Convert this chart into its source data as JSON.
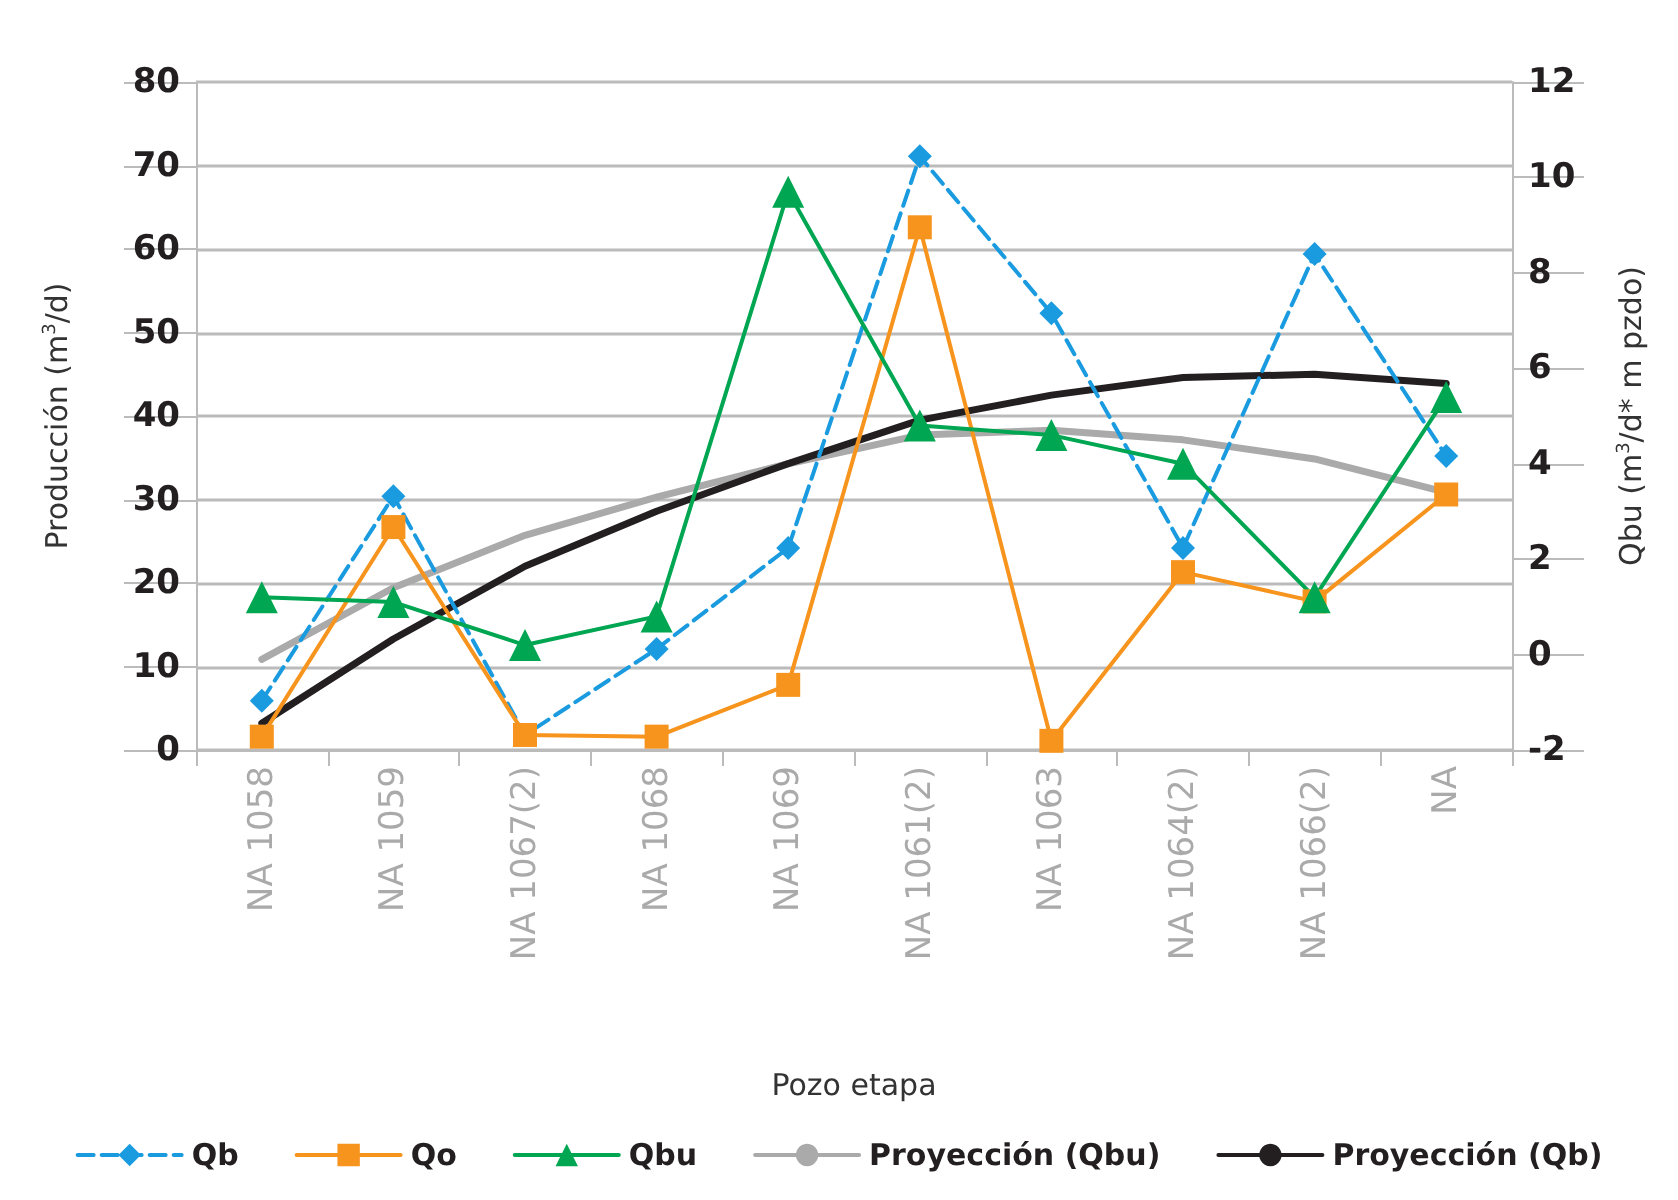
{
  "chart_data": {
    "type": "line",
    "xlabel": "Pozo etapa",
    "ylabel": "Producción (m$^{3}$/d)",
    "y2label": "Qbu (m$^{3}$/d* m pzdo)",
    "categories": [
      "NA 1058",
      "NA 1059",
      "NA 1067(2)",
      "NA 1068",
      "NA 1069",
      "NA 1061(2)",
      "NA 1063",
      "NA 1064(2)",
      "NA 1066(2)",
      "NA"
    ],
    "series": [
      {
        "name": "Qb",
        "color": "#1a9be0",
        "marker": "diamond",
        "line_style": "dashed",
        "values": [
          5.9,
          30.4,
          1.8,
          12.1,
          24.2,
          71.1,
          52.3,
          24.2,
          59.4,
          35.2
        ]
      },
      {
        "name": "Qo",
        "color": "#f7941d",
        "marker": "square",
        "line_style": "solid",
        "values": [
          1.6,
          26.7,
          1.8,
          1.6,
          7.8,
          62.6,
          1.1,
          21.3,
          17.8,
          30.6
        ]
      },
      {
        "name": "Qbu",
        "color": "#00a651",
        "marker": "triangle",
        "line_style": "solid",
        "axis": "y2",
        "values": [
          1.2,
          1.1,
          0.2,
          0.8,
          9.7,
          4.8,
          4.6,
          4.0,
          1.2,
          5.4
        ]
      },
      {
        "name": "Proyección (Qbu)",
        "color": "#aaaaaa",
        "marker": "none",
        "line_style": "solid",
        "axis": "y2",
        "values": [
          -0.1,
          1.4,
          2.5,
          3.3,
          4.0,
          4.6,
          4.7,
          4.5,
          4.1,
          3.4
        ]
      },
      {
        "name": "Proyección (Qb)",
        "color": "#231f20",
        "marker": "none",
        "line_style": "solid",
        "values": [
          3.2,
          13.3,
          22,
          28.6,
          34.3,
          39.5,
          42.5,
          44.6,
          45,
          43.9
        ]
      }
    ],
    "ylim": [
      0,
      80
    ],
    "yticks": [
      0,
      10,
      20,
      30,
      40,
      50,
      60,
      70,
      80
    ],
    "y2lim": [
      -2,
      12
    ],
    "y2ticks": [
      -2,
      0,
      2,
      4,
      6,
      8,
      10,
      12
    ],
    "grid": "y",
    "legend": "bottom"
  }
}
